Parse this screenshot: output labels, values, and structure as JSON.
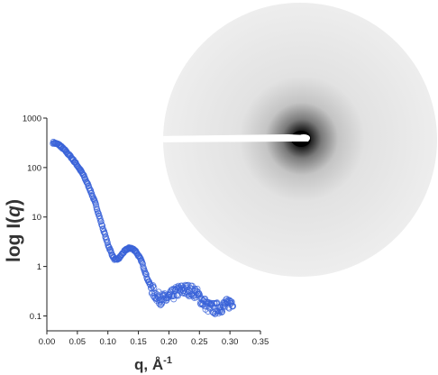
{
  "chart_data": {
    "type": "scatter",
    "xlabel": "q, Å",
    "xlabel_superscript": "-1",
    "ylabel_prefix": "log I(",
    "ylabel_var": "q",
    "ylabel_suffix": ")",
    "xlim": [
      0,
      0.35
    ],
    "ylim": [
      0.05,
      1000
    ],
    "y_scale": "log",
    "x_ticks": [
      "0.00",
      "0.05",
      "0.10",
      "0.15",
      "0.20",
      "0.25",
      "0.30",
      "0.35"
    ],
    "y_ticks": [
      "1000",
      "100",
      "10",
      "1",
      "0.1"
    ],
    "grid": false,
    "legend": "none",
    "marker": "open-circle",
    "marker_color": "#3a63d8",
    "anchors": [
      [
        0.01,
        320
      ],
      [
        0.02,
        290
      ],
      [
        0.03,
        220
      ],
      [
        0.04,
        160
      ],
      [
        0.05,
        110
      ],
      [
        0.06,
        70
      ],
      [
        0.07,
        38
      ],
      [
        0.08,
        18
      ],
      [
        0.09,
        7
      ],
      [
        0.1,
        2.8
      ],
      [
        0.108,
        1.6
      ],
      [
        0.112,
        1.35
      ],
      [
        0.118,
        1.45
      ],
      [
        0.125,
        1.9
      ],
      [
        0.132,
        2.3
      ],
      [
        0.138,
        2.35
      ],
      [
        0.145,
        2.1
      ],
      [
        0.155,
        1.3
      ],
      [
        0.165,
        0.55
      ],
      [
        0.175,
        0.3
      ],
      [
        0.185,
        0.22
      ],
      [
        0.195,
        0.22
      ],
      [
        0.205,
        0.26
      ],
      [
        0.215,
        0.32
      ],
      [
        0.225,
        0.34
      ],
      [
        0.235,
        0.33
      ],
      [
        0.245,
        0.29
      ],
      [
        0.255,
        0.2
      ],
      [
        0.265,
        0.15
      ],
      [
        0.275,
        0.14
      ],
      [
        0.285,
        0.15
      ],
      [
        0.295,
        0.17
      ],
      [
        0.305,
        0.2
      ]
    ],
    "n_points": 420
  },
  "detector": {
    "description_icon": "saxs-detector-pattern",
    "background_color": "#ededed",
    "beam_stop_color": "#ffffff"
  }
}
